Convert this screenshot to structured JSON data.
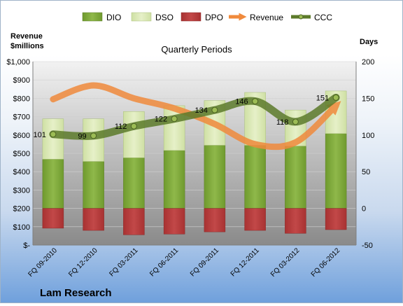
{
  "chart_data": {
    "type": "bar",
    "title": "Quarterly Periods",
    "company": "Lam Research",
    "ylabel_left": [
      "Revenue",
      "$millions"
    ],
    "ylabel_right": "Days",
    "categories": [
      "FQ 09-2010",
      "FQ 12-2010",
      "FQ 03-2011",
      "FQ 06-2011",
      "FQ 09-2011",
      "FQ 12-2011",
      "FQ 03-2012",
      "FQ 06-2012"
    ],
    "left_axis": {
      "ticks": [
        "$-",
        "$100",
        "$200",
        "$300",
        "$400",
        "$500",
        "$600",
        "$700",
        "$800",
        "$900",
        "$1,000"
      ],
      "ylim": [
        0,
        1000
      ]
    },
    "right_axis": {
      "ticks": [
        "-50",
        "0",
        "50",
        "100",
        "150",
        "200"
      ],
      "ylim": [
        -50,
        200
      ]
    },
    "series": [
      {
        "name": "DIO",
        "axis": "right",
        "color": "#7da33a",
        "values": [
          67,
          64,
          69,
          79,
          86,
          86,
          85,
          102
        ]
      },
      {
        "name": "DSO",
        "axis": "right",
        "color": "#d7e6b3",
        "values": [
          55,
          58,
          63,
          61,
          61,
          72,
          49,
          58
        ]
      },
      {
        "name": "DPO",
        "axis": "right",
        "color": "#b23a3a",
        "values": [
          -27,
          -30,
          -36,
          -35,
          -32,
          -30,
          -34,
          -29
        ]
      },
      {
        "name": "Revenue",
        "axis": "left",
        "color": "#f08a3c",
        "values": [
          795,
          870,
          800,
          745,
          660,
          550,
          560,
          760
        ]
      },
      {
        "name": "CCC",
        "axis": "right",
        "color": "#5c7a2a",
        "values": [
          101,
          99,
          112,
          122,
          134,
          146,
          118,
          151
        ]
      }
    ],
    "ccc_labels": [
      "101",
      "99",
      "112",
      "122",
      "134",
      "146",
      "118",
      "151"
    ]
  }
}
